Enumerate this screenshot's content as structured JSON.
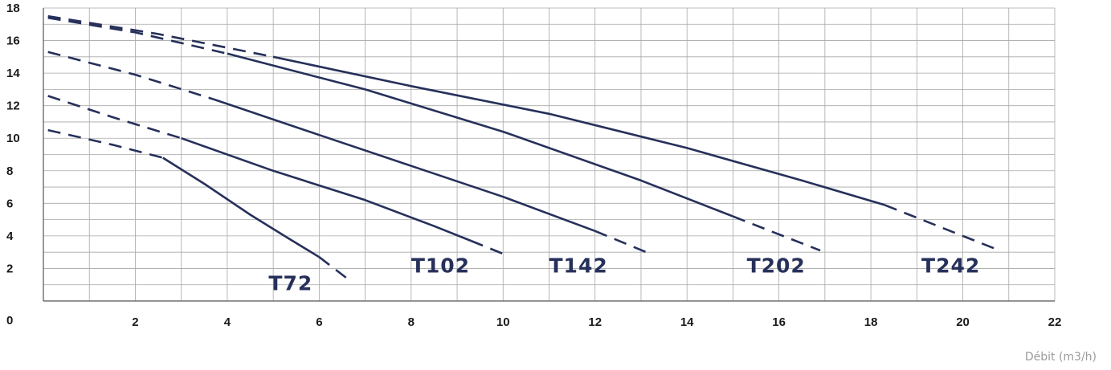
{
  "chart_data": {
    "type": "line",
    "xlabel": "Débit (m3/h)",
    "ylabel": "",
    "xlim": [
      0,
      22
    ],
    "ylim": [
      0,
      18
    ],
    "x_ticks": [
      0,
      2,
      4,
      6,
      8,
      10,
      12,
      14,
      16,
      18,
      20,
      22
    ],
    "y_ticks": [
      0,
      2,
      4,
      6,
      8,
      10,
      12,
      14,
      16,
      18
    ],
    "grid": true,
    "line_color": "#26305a",
    "series": [
      {
        "name": "T72",
        "dashed_start": [
          [
            0.1,
            10.5
          ],
          [
            1.5,
            9.6
          ],
          [
            2.6,
            8.8
          ]
        ],
        "solid": [
          [
            2.6,
            8.8
          ],
          [
            3.5,
            7.2
          ],
          [
            4.5,
            5.3
          ],
          [
            5.3,
            3.9
          ],
          [
            6.0,
            2.7
          ]
        ],
        "dashed_end": [
          [
            6.0,
            2.7
          ],
          [
            6.6,
            1.4
          ]
        ]
      },
      {
        "name": "T102",
        "dashed_start": [
          [
            0.1,
            12.6
          ],
          [
            1.5,
            11.3
          ],
          [
            3.0,
            10.0
          ]
        ],
        "solid": [
          [
            3.0,
            10.0
          ],
          [
            5.0,
            8.0
          ],
          [
            7.0,
            6.2
          ],
          [
            8.5,
            4.6
          ],
          [
            9.3,
            3.7
          ]
        ],
        "dashed_end": [
          [
            9.3,
            3.7
          ],
          [
            10.0,
            2.9
          ]
        ]
      },
      {
        "name": "T142",
        "dashed_start": [
          [
            0.1,
            15.3
          ],
          [
            2.0,
            13.9
          ],
          [
            3.7,
            12.4
          ]
        ],
        "solid": [
          [
            3.7,
            12.4
          ],
          [
            6.0,
            10.2
          ],
          [
            8.0,
            8.3
          ],
          [
            10.0,
            6.4
          ],
          [
            12.0,
            4.3
          ]
        ],
        "dashed_end": [
          [
            12.0,
            4.3
          ],
          [
            13.2,
            2.9
          ]
        ]
      },
      {
        "name": "T202",
        "dashed_start": [
          [
            0.1,
            17.4
          ],
          [
            2.0,
            16.5
          ],
          [
            4.0,
            15.2
          ]
        ],
        "solid": [
          [
            4.0,
            15.2
          ],
          [
            7.0,
            13.0
          ],
          [
            10.0,
            10.4
          ],
          [
            13.0,
            7.4
          ],
          [
            15.0,
            5.2
          ]
        ],
        "dashed_end": [
          [
            15.0,
            5.2
          ],
          [
            16.9,
            3.1
          ]
        ]
      },
      {
        "name": "T242",
        "dashed_start": [
          [
            0.1,
            17.5
          ],
          [
            2.5,
            16.4
          ],
          [
            5.0,
            15.0
          ]
        ],
        "solid": [
          [
            5.0,
            15.0
          ],
          [
            8.0,
            13.2
          ],
          [
            11.0,
            11.5
          ],
          [
            14.0,
            9.4
          ],
          [
            16.5,
            7.4
          ],
          [
            18.3,
            5.9
          ]
        ],
        "dashed_end": [
          [
            18.3,
            5.9
          ],
          [
            20.8,
            3.1
          ]
        ]
      }
    ]
  }
}
